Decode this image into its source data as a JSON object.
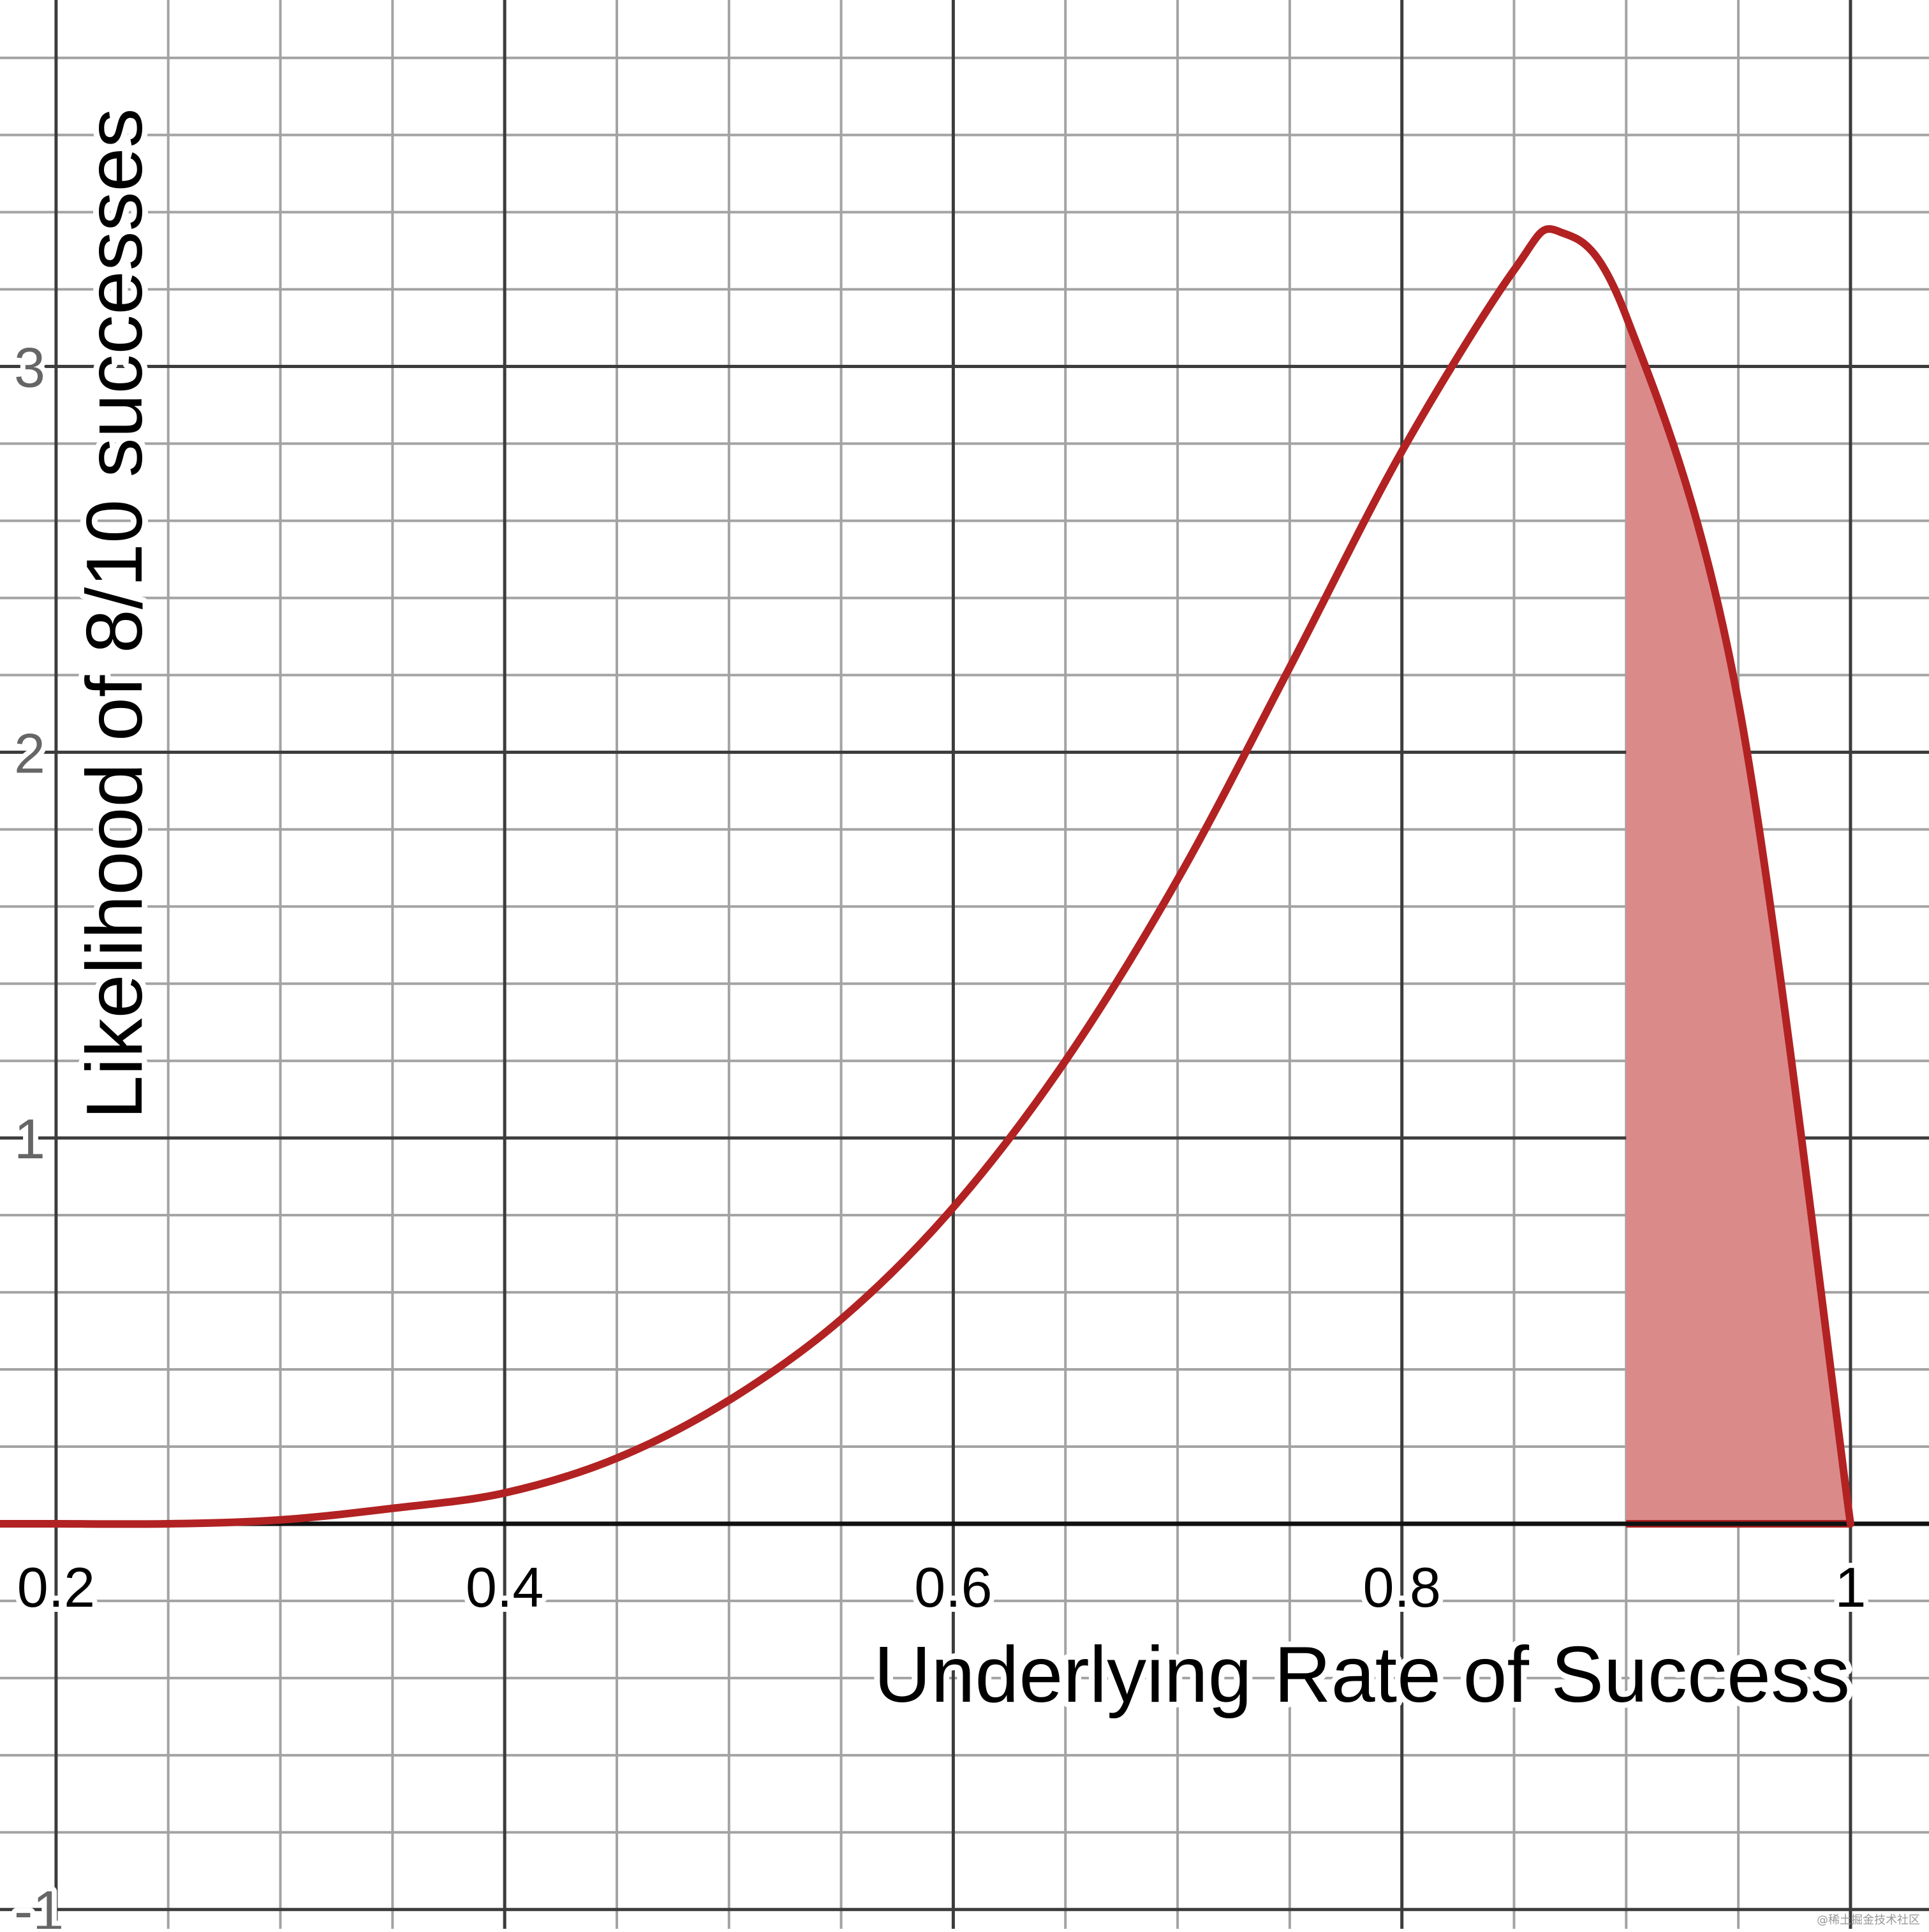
{
  "chart_data": {
    "type": "line",
    "title": "",
    "xlabel": "Underlying Rate of Success",
    "ylabel": "Likelihood of 8/10 successes",
    "xlim": [
      0.175,
      1.035
    ],
    "ylim": [
      -1.05,
      3.95
    ],
    "x_ticks": [
      {
        "value": 0.2,
        "label": "0.2"
      },
      {
        "value": 0.4,
        "label": "0.4"
      },
      {
        "value": 0.6,
        "label": "0.6"
      },
      {
        "value": 0.8,
        "label": "0.8"
      },
      {
        "value": 1.0,
        "label": "1"
      }
    ],
    "y_ticks": [
      {
        "value": -1,
        "label": "-1"
      },
      {
        "value": 1,
        "label": "1"
      },
      {
        "value": 2,
        "label": "2"
      },
      {
        "value": 3,
        "label": "3"
      }
    ],
    "grid": true,
    "series": [
      {
        "color": "#b22222",
        "x": [
          0.175,
          0.2,
          0.25,
          0.3,
          0.35,
          0.4,
          0.45,
          0.5,
          0.55,
          0.6,
          0.65,
          0.7,
          0.75,
          0.8,
          0.85,
          0.87,
          0.9,
          0.95,
          1.0
        ],
        "y": [
          0.0,
          0.0,
          0.0,
          0.01,
          0.04,
          0.08,
          0.17,
          0.32,
          0.53,
          0.82,
          1.2,
          1.67,
          2.22,
          2.78,
          3.25,
          3.35,
          3.13,
          2.13,
          0.0
        ]
      }
    ],
    "shaded_region": {
      "x_from": 0.9,
      "x_to": 1.0,
      "color": "#db8a8a"
    }
  },
  "watermark": "@稀土掘金技术社区"
}
